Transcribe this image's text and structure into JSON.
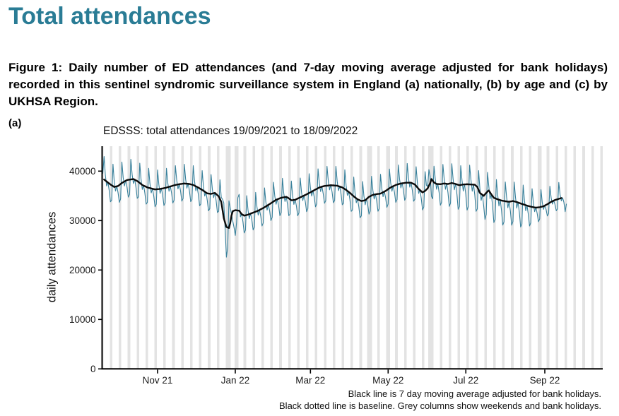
{
  "page": {
    "title": "Total attendances",
    "title_color": "#2a7c95",
    "caption": "Figure 1: Daily number of ED attendances (and 7-day moving average adjusted for bank holidays) recorded in this sentinel syndromic surveillance system in England (a) nationally, (b) by age and (c) by UKHSA Region.",
    "panel_label": "(a)",
    "footnote_line1": "Black line is 7 day moving average adjusted for bank holidays.",
    "footnote_line2": "Black dotted line is baseline. Grey columns show weekends and bank holidays."
  },
  "chart_data": {
    "type": "line",
    "title": "EDSSS: total attendances 19/09/2021 to 18/09/2022",
    "xlabel": "",
    "ylabel": "daily attendances",
    "x_start_date": "2021-09-19",
    "x_end_date": "2022-09-18",
    "x_first_day_weekday": "sunday",
    "days_total": 365,
    "ylim": [
      0,
      45000
    ],
    "y_ticks": [
      0,
      10000,
      20000,
      30000,
      40000
    ],
    "x_ticks": [
      {
        "day": 43,
        "label": "Nov 21"
      },
      {
        "day": 104,
        "label": "Jan 22"
      },
      {
        "day": 163,
        "label": "Mar 22"
      },
      {
        "day": 224,
        "label": "May 22"
      },
      {
        "day": 285,
        "label": "Jul 22"
      },
      {
        "day": 347,
        "label": "Sep 22"
      }
    ],
    "grid": false,
    "legend": "none",
    "weekend_fill": "#e3e3e3",
    "bank_holiday_days": [
      99,
      100,
      106,
      208,
      211,
      225,
      256,
      257,
      344
    ],
    "series": [
      {
        "name": "daily attendances",
        "color": "#37809b",
        "width": 1.1
      },
      {
        "name": "7-day moving average adjusted for bank holidays",
        "color": "#0a0a0a",
        "width": 2.4
      }
    ],
    "moving_average_day_range": [
      1,
      360
    ],
    "moving_average_keypoints": [
      [
        1,
        38300
      ],
      [
        3,
        37900
      ],
      [
        6,
        37300
      ],
      [
        9,
        36800
      ],
      [
        12,
        37000
      ],
      [
        15,
        37600
      ],
      [
        19,
        38200
      ],
      [
        24,
        38400
      ],
      [
        27,
        38000
      ],
      [
        31,
        37200
      ],
      [
        35,
        36700
      ],
      [
        38,
        36500
      ],
      [
        41,
        36300
      ],
      [
        45,
        36400
      ],
      [
        49,
        36600
      ],
      [
        53,
        36900
      ],
      [
        57,
        37200
      ],
      [
        61,
        37400
      ],
      [
        64,
        37500
      ],
      [
        68,
        37400
      ],
      [
        71,
        37200
      ],
      [
        74,
        36800
      ],
      [
        78,
        36200
      ],
      [
        82,
        35500
      ],
      [
        85,
        35400
      ],
      [
        88,
        35600
      ],
      [
        91,
        34900
      ],
      [
        93,
        33800
      ],
      [
        95,
        30500
      ],
      [
        97,
        28700
      ],
      [
        99,
        28500
      ],
      [
        100,
        29500
      ],
      [
        101,
        31000
      ],
      [
        102,
        31900
      ],
      [
        104,
        32100
      ],
      [
        107,
        32000
      ],
      [
        109,
        31300
      ],
      [
        111,
        31000
      ],
      [
        114,
        31200
      ],
      [
        118,
        31600
      ],
      [
        122,
        32000
      ],
      [
        127,
        32700
      ],
      [
        132,
        33500
      ],
      [
        136,
        34200
      ],
      [
        140,
        34600
      ],
      [
        144,
        34800
      ],
      [
        146,
        34500
      ],
      [
        148,
        34100
      ],
      [
        151,
        34200
      ],
      [
        155,
        34700
      ],
      [
        160,
        35300
      ],
      [
        165,
        36000
      ],
      [
        170,
        36700
      ],
      [
        174,
        37000
      ],
      [
        179,
        37150
      ],
      [
        184,
        37050
      ],
      [
        188,
        36700
      ],
      [
        191,
        36200
      ],
      [
        194,
        35600
      ],
      [
        197,
        34900
      ],
      [
        200,
        34300
      ],
      [
        203,
        33950
      ],
      [
        206,
        34100
      ],
      [
        209,
        34800
      ],
      [
        212,
        35200
      ],
      [
        215,
        35350
      ],
      [
        218,
        35450
      ],
      [
        222,
        36000
      ],
      [
        226,
        36700
      ],
      [
        230,
        37200
      ],
      [
        234,
        37500
      ],
      [
        238,
        37650
      ],
      [
        242,
        37650
      ],
      [
        245,
        37300
      ],
      [
        248,
        36400
      ],
      [
        251,
        35700
      ],
      [
        253,
        36000
      ],
      [
        255,
        36500
      ],
      [
        257,
        37600
      ],
      [
        258,
        38400
      ],
      [
        260,
        37700
      ],
      [
        262,
        37400
      ],
      [
        265,
        37350
      ],
      [
        268,
        37500
      ],
      [
        271,
        37400
      ],
      [
        274,
        37600
      ],
      [
        277,
        37400
      ],
      [
        280,
        37150
      ],
      [
        283,
        37300
      ],
      [
        286,
        37350
      ],
      [
        289,
        37300
      ],
      [
        292,
        37250
      ],
      [
        294,
        36800
      ],
      [
        296,
        35600
      ],
      [
        299,
        35000
      ],
      [
        301,
        35600
      ],
      [
        303,
        36100
      ],
      [
        305,
        35300
      ],
      [
        307,
        34600
      ],
      [
        310,
        34300
      ],
      [
        313,
        34050
      ],
      [
        316,
        33900
      ],
      [
        319,
        33800
      ],
      [
        322,
        33950
      ],
      [
        325,
        33750
      ],
      [
        328,
        33450
      ],
      [
        331,
        33200
      ],
      [
        334,
        32950
      ],
      [
        337,
        32750
      ],
      [
        340,
        32620
      ],
      [
        343,
        32700
      ],
      [
        346,
        32900
      ],
      [
        349,
        33300
      ],
      [
        352,
        33800
      ],
      [
        355,
        34150
      ],
      [
        358,
        34400
      ],
      [
        360,
        34550
      ]
    ],
    "weekday_offsets": [
      -3000,
      3900,
      900,
      -900,
      100,
      -1400,
      -3500
    ],
    "peak_amplitude_keypoints": [
      [
        0,
        1.2
      ],
      [
        20,
        1.05
      ],
      [
        40,
        1.0
      ],
      [
        330,
        1.0
      ],
      [
        350,
        0.85
      ],
      [
        364,
        0.85
      ]
    ],
    "trough_amplitude_keypoints": [
      [
        0,
        1.0
      ],
      [
        250,
        1.0
      ],
      [
        285,
        1.5
      ],
      [
        330,
        1.35
      ],
      [
        345,
        0.7
      ],
      [
        364,
        0.6
      ]
    ],
    "daily_overrides": {
      "0": 39500,
      "94": 34300,
      "95": 33600,
      "96": 28600,
      "97": 22600,
      "98": 24500,
      "99": 34000,
      "100": 32600,
      "101": 31400,
      "102": 29900,
      "103": 28600,
      "104": 27000,
      "105": 29600,
      "106": 34600,
      "107": 35300,
      "255": 36900,
      "256": 40300,
      "257": 38900,
      "258": 34900,
      "259": 34400,
      "260": 41000,
      "363": 31800,
      "364": 33400
    }
  }
}
